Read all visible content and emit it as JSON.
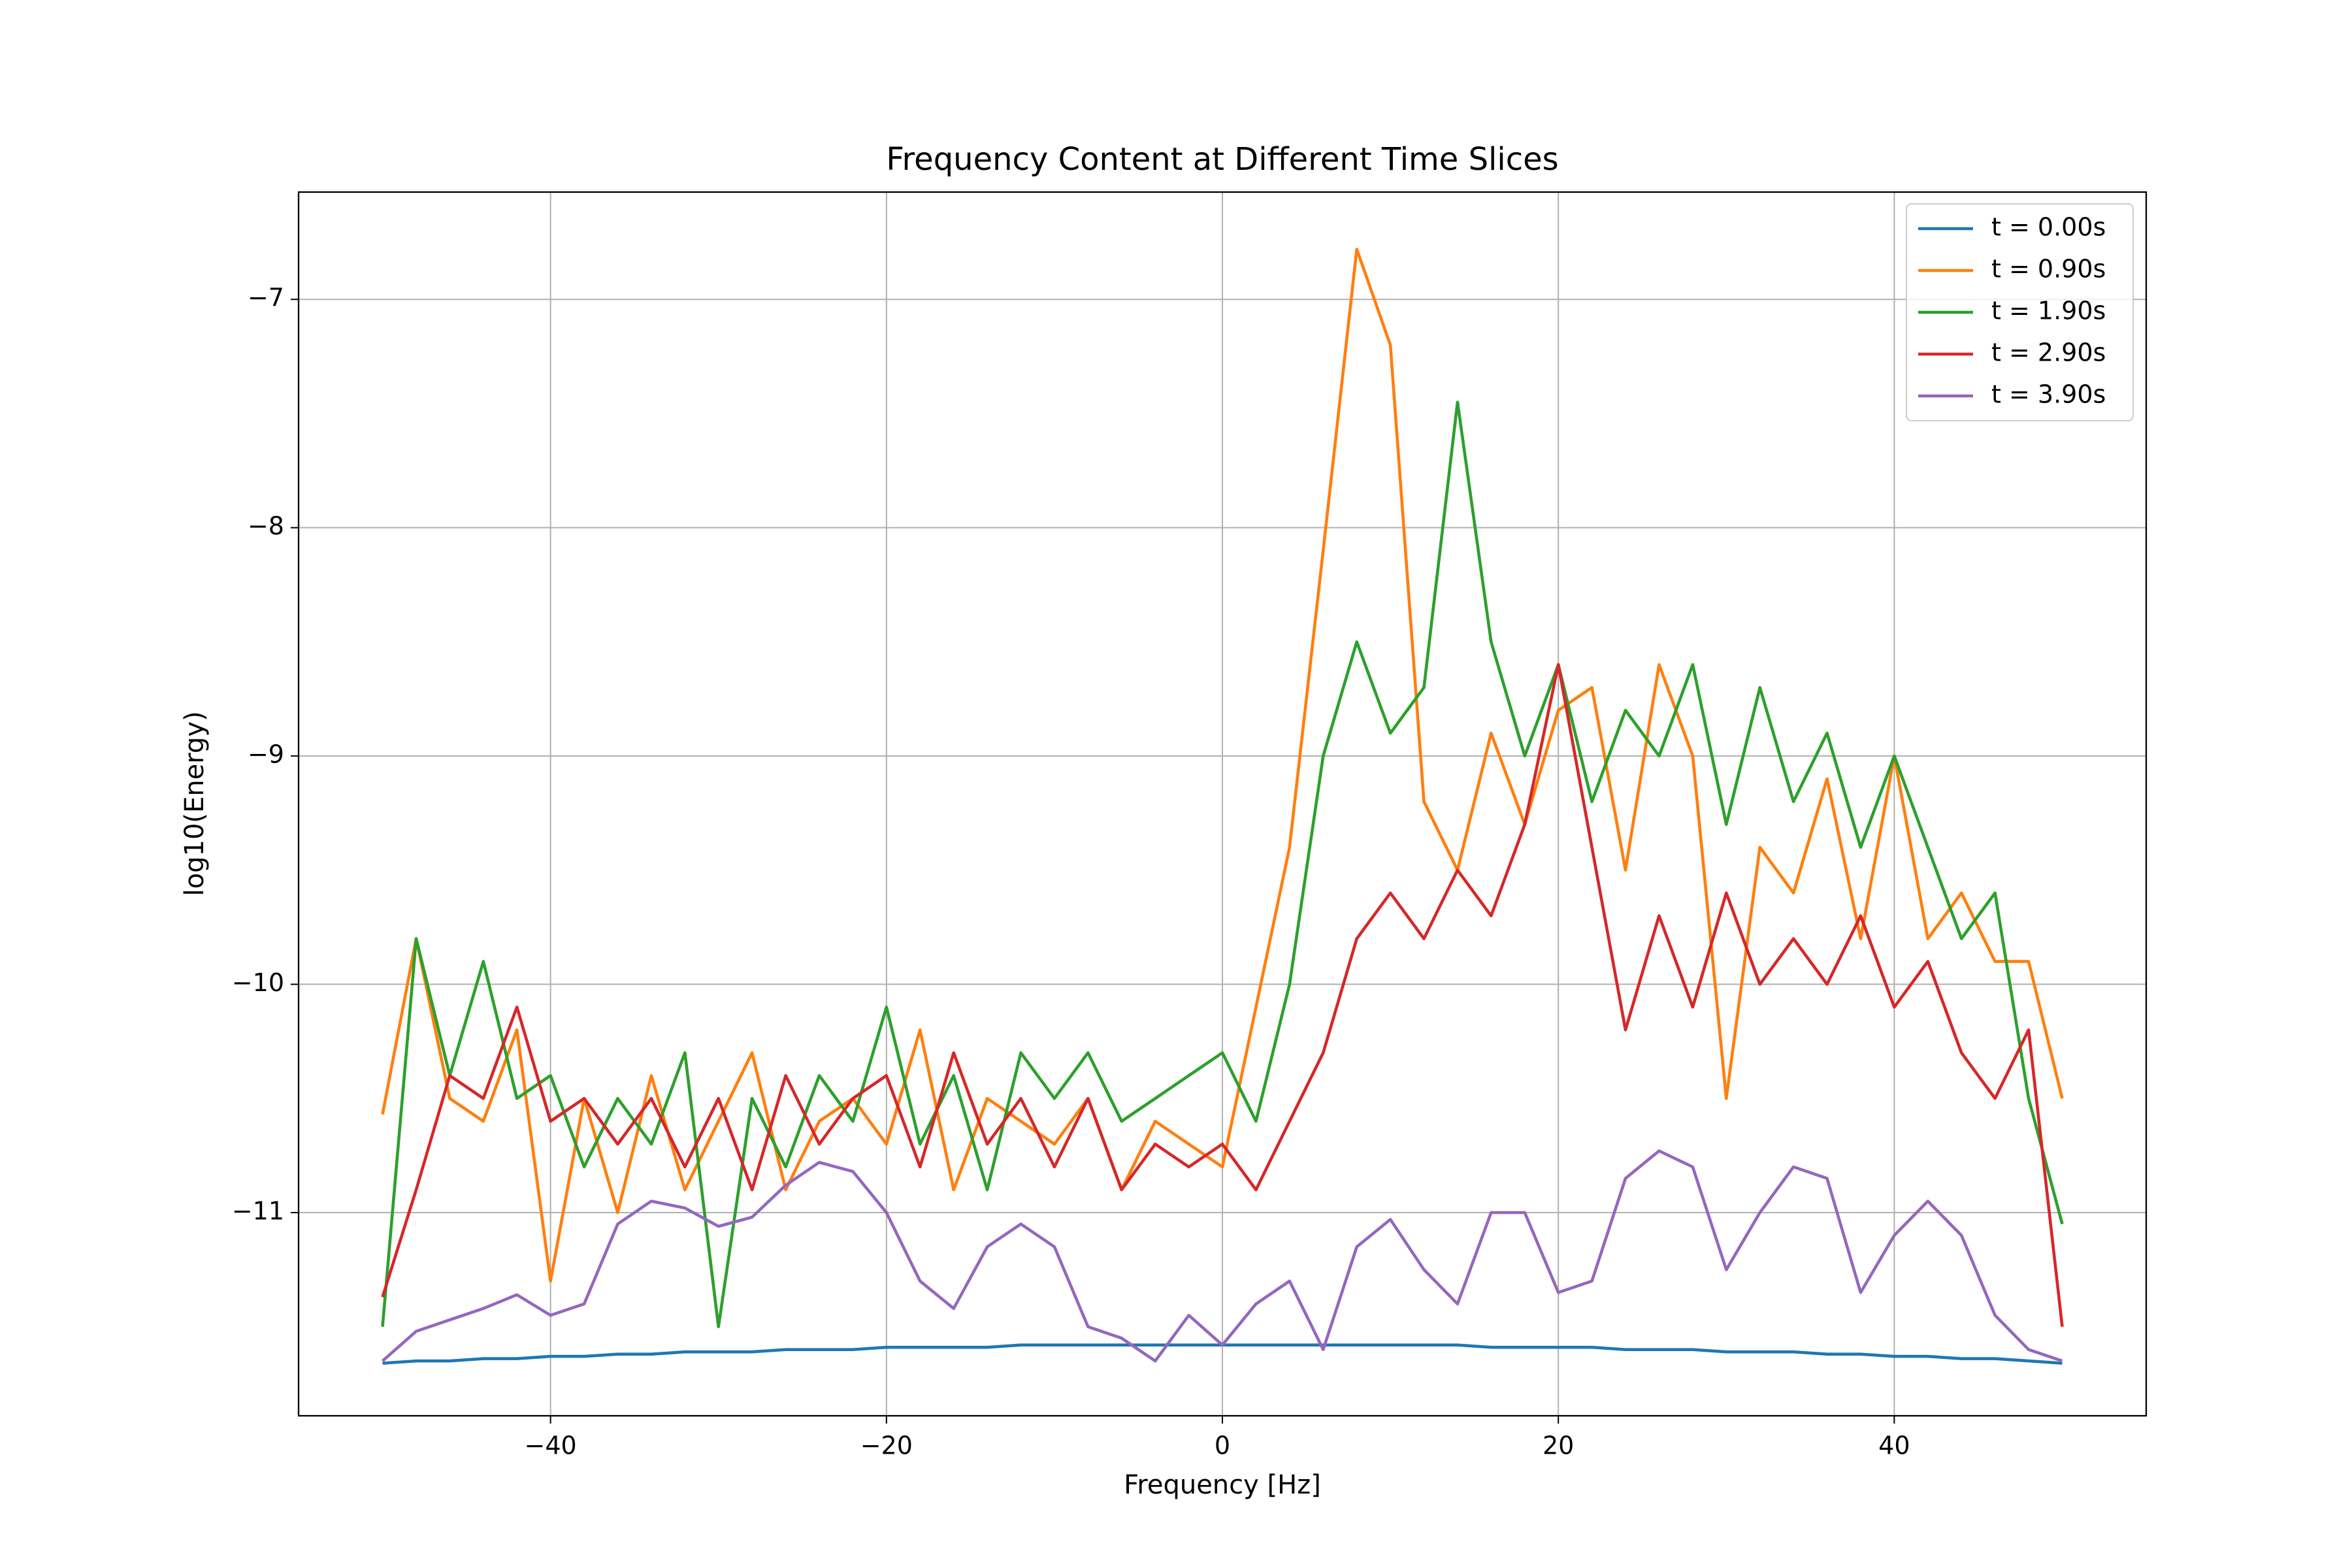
{
  "chart_data": {
    "type": "line",
    "title": "Frequency Content at Different Time Slices",
    "xlabel": "Frequency [Hz]",
    "ylabel": "log10(Energy)",
    "x": [
      -50,
      -48,
      -46,
      -44,
      -42,
      -40,
      -38,
      -36,
      -34,
      -32,
      -30,
      -28,
      -26,
      -24,
      -22,
      -20,
      -18,
      -16,
      -14,
      -12,
      -10,
      -8,
      -6,
      -4,
      -2,
      0,
      2,
      4,
      6,
      8,
      10,
      12,
      14,
      16,
      18,
      20,
      22,
      24,
      26,
      28,
      30,
      32,
      34,
      36,
      38,
      40,
      42,
      44,
      46,
      48,
      50
    ],
    "series": [
      {
        "name": "t = 0.00s",
        "color": "#1f77b4",
        "values": [
          -11.66,
          -11.65,
          -11.65,
          -11.64,
          -11.64,
          -11.63,
          -11.63,
          -11.62,
          -11.62,
          -11.61,
          -11.61,
          -11.61,
          -11.6,
          -11.6,
          -11.6,
          -11.59,
          -11.59,
          -11.59,
          -11.59,
          -11.58,
          -11.58,
          -11.58,
          -11.58,
          -11.58,
          -11.58,
          -11.58,
          -11.58,
          -11.58,
          -11.58,
          -11.58,
          -11.58,
          -11.58,
          -11.58,
          -11.59,
          -11.59,
          -11.59,
          -11.59,
          -11.6,
          -11.6,
          -11.6,
          -11.61,
          -11.61,
          -11.61,
          -11.62,
          -11.62,
          -11.63,
          -11.63,
          -11.64,
          -11.64,
          -11.65,
          -11.66
        ]
      },
      {
        "name": "t = 0.90s",
        "color": "#ff7f0e",
        "values": [
          -10.57,
          -9.8,
          -10.5,
          -10.6,
          -10.2,
          -11.3,
          -10.5,
          -11.0,
          -10.4,
          -10.9,
          -10.6,
          -10.3,
          -10.9,
          -10.6,
          -10.5,
          -10.7,
          -10.2,
          -10.9,
          -10.5,
          -10.6,
          -10.7,
          -10.5,
          -10.9,
          -10.6,
          -10.7,
          -10.8,
          -10.1,
          -9.4,
          -8.1,
          -6.78,
          -7.2,
          -9.2,
          -9.5,
          -8.9,
          -9.3,
          -8.8,
          -8.7,
          -9.5,
          -8.6,
          -9.0,
          -10.5,
          -9.4,
          -9.6,
          -9.1,
          -9.8,
          -9.0,
          -9.8,
          -9.6,
          -9.9,
          -9.9,
          -10.5
        ]
      },
      {
        "name": "t = 1.90s",
        "color": "#2ca02c",
        "values": [
          -11.5,
          -9.8,
          -10.4,
          -9.9,
          -10.5,
          -10.4,
          -10.8,
          -10.5,
          -10.7,
          -10.3,
          -11.5,
          -10.5,
          -10.8,
          -10.4,
          -10.6,
          -10.1,
          -10.7,
          -10.4,
          -10.9,
          -10.3,
          -10.5,
          -10.3,
          -10.6,
          -10.5,
          -10.4,
          -10.3,
          -10.6,
          -10.0,
          -9.0,
          -8.5,
          -8.9,
          -8.7,
          -7.45,
          -8.5,
          -9.0,
          -8.6,
          -9.2,
          -8.8,
          -9.0,
          -8.6,
          -9.3,
          -8.7,
          -9.2,
          -8.9,
          -9.4,
          -9.0,
          -9.4,
          -9.8,
          -9.6,
          -10.5,
          -11.05
        ]
      },
      {
        "name": "t = 2.90s",
        "color": "#d62728",
        "values": [
          -11.37,
          -10.9,
          -10.4,
          -10.5,
          -10.1,
          -10.6,
          -10.5,
          -10.7,
          -10.5,
          -10.8,
          -10.5,
          -10.9,
          -10.4,
          -10.7,
          -10.5,
          -10.4,
          -10.8,
          -10.3,
          -10.7,
          -10.5,
          -10.8,
          -10.5,
          -10.9,
          -10.7,
          -10.8,
          -10.7,
          -10.9,
          -10.6,
          -10.3,
          -9.8,
          -9.6,
          -9.8,
          -9.5,
          -9.7,
          -9.3,
          -8.6,
          -9.4,
          -10.2,
          -9.7,
          -10.1,
          -9.6,
          -10.0,
          -9.8,
          -10.0,
          -9.7,
          -10.1,
          -9.9,
          -10.3,
          -10.5,
          -10.2,
          -11.5
        ]
      },
      {
        "name": "t = 3.90s",
        "color": "#9467bd",
        "values": [
          -11.65,
          -11.52,
          -11.47,
          -11.42,
          -11.36,
          -11.45,
          -11.4,
          -11.05,
          -10.95,
          -10.98,
          -11.06,
          -11.02,
          -10.88,
          -10.78,
          -10.82,
          -11.0,
          -11.3,
          -11.42,
          -11.15,
          -11.05,
          -11.15,
          -11.5,
          -11.55,
          -11.65,
          -11.45,
          -11.58,
          -11.4,
          -11.3,
          -11.6,
          -11.15,
          -11.03,
          -11.25,
          -11.4,
          -11.0,
          -11.0,
          -11.35,
          -11.3,
          -10.85,
          -10.73,
          -10.8,
          -11.25,
          -11.0,
          -10.8,
          -10.85,
          -11.35,
          -11.1,
          -10.95,
          -11.1,
          -11.45,
          -11.6,
          -11.65
        ]
      }
    ],
    "xlim": [
      -55,
      55
    ],
    "ylim": [
      -11.89,
      -6.53
    ],
    "xticks": [
      {
        "value": -40,
        "label": "−40"
      },
      {
        "value": -20,
        "label": "−20"
      },
      0,
      20,
      40
    ],
    "yticks": [
      {
        "value": -11,
        "label": "−11"
      },
      {
        "value": -10,
        "label": "−10"
      },
      {
        "value": -9,
        "label": "−9"
      },
      {
        "value": -8,
        "label": "−8"
      },
      {
        "value": -7,
        "label": "−7"
      }
    ],
    "grid": true,
    "legend": "upper-right"
  }
}
